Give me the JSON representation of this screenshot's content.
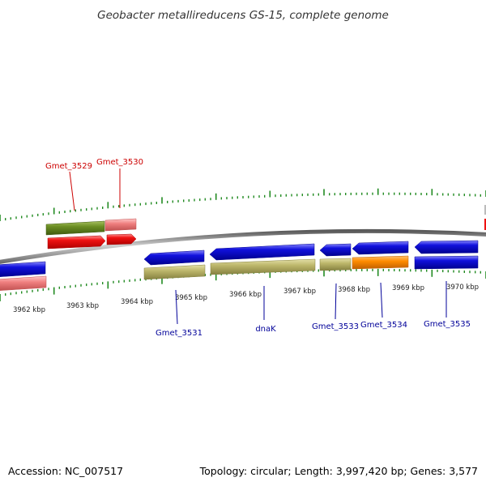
{
  "title": "Geobacter metallireducens GS-15, complete genome",
  "footer": {
    "accession": "Accession: NC_007517",
    "summary": "Topology: circular; Length: 3,997,420 bp; Genes: 3,577"
  },
  "ticks": [
    {
      "label": "3962 kbp"
    },
    {
      "label": "3963 kbp"
    },
    {
      "label": "3964 kbp"
    },
    {
      "label": "3965 kbp"
    },
    {
      "label": "3966 kbp"
    },
    {
      "label": "3967 kbp"
    },
    {
      "label": "3968 kbp"
    },
    {
      "label": "3969 kbp"
    },
    {
      "label": "3970 kbp"
    }
  ],
  "gene_labels": {
    "forward": [
      "Gmet_3529",
      "Gmet_3530"
    ],
    "reverse": [
      "Gmet_3531",
      "dnaK",
      "Gmet_3533",
      "Gmet_3534",
      "Gmet_3535"
    ]
  },
  "colors": {
    "backbone": "#8a8a8a",
    "tick": "#228b22",
    "cds_forward": "#ee1111",
    "cds_reverse": "#1111dd",
    "gene_olive": "#6b8e23",
    "gene_pink": "#f08080",
    "gene_khaki": "#bdb76b",
    "gene_orange": "#ff8c00"
  }
}
